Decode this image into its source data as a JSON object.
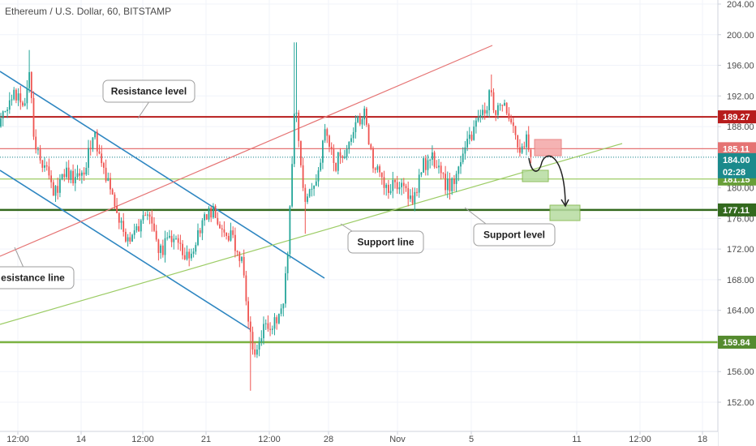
{
  "chart_data": {
    "type": "candlestick",
    "title": "Ethereum / U.S. Dollar, 60, BITSTAMP",
    "ylim": [
      150,
      205
    ],
    "y_ticks": [
      152,
      156,
      160,
      164,
      168,
      172,
      176,
      180,
      184,
      188,
      192,
      196,
      200,
      204
    ],
    "x_ticks": [
      "12:00",
      "14",
      "12:00",
      "21",
      "12:00",
      "28",
      "Nov",
      "5",
      "11",
      "12:00",
      "18"
    ],
    "grid": true,
    "price_path": [
      {
        "t": 0,
        "p": 188
      },
      {
        "t": 15,
        "p": 193
      },
      {
        "t": 28,
        "p": 191
      },
      {
        "t": 36,
        "p": 196
      },
      {
        "t": 42,
        "p": 185
      },
      {
        "t": 55,
        "p": 183
      },
      {
        "t": 68,
        "p": 179
      },
      {
        "t": 80,
        "p": 182
      },
      {
        "t": 92,
        "p": 181
      },
      {
        "t": 104,
        "p": 183
      },
      {
        "t": 116,
        "p": 187
      },
      {
        "t": 128,
        "p": 182
      },
      {
        "t": 140,
        "p": 178
      },
      {
        "t": 155,
        "p": 173
      },
      {
        "t": 168,
        "p": 175
      },
      {
        "t": 180,
        "p": 177
      },
      {
        "t": 195,
        "p": 171
      },
      {
        "t": 208,
        "p": 174
      },
      {
        "t": 222,
        "p": 172
      },
      {
        "t": 235,
        "p": 171
      },
      {
        "t": 248,
        "p": 176
      },
      {
        "t": 262,
        "p": 177
      },
      {
        "t": 275,
        "p": 174
      },
      {
        "t": 288,
        "p": 173
      },
      {
        "t": 298,
        "p": 170
      },
      {
        "t": 304,
        "p": 164
      },
      {
        "t": 310,
        "p": 158
      },
      {
        "t": 322,
        "p": 161
      },
      {
        "t": 335,
        "p": 162
      },
      {
        "t": 345,
        "p": 163
      },
      {
        "t": 353,
        "p": 170
      },
      {
        "t": 358,
        "p": 180
      },
      {
        "t": 363,
        "p": 193
      },
      {
        "t": 368,
        "p": 185
      },
      {
        "t": 374,
        "p": 178
      },
      {
        "t": 380,
        "p": 180
      },
      {
        "t": 390,
        "p": 181
      },
      {
        "t": 400,
        "p": 187
      },
      {
        "t": 412,
        "p": 183
      },
      {
        "t": 425,
        "p": 185
      },
      {
        "t": 437,
        "p": 188
      },
      {
        "t": 448,
        "p": 190
      },
      {
        "t": 458,
        "p": 183
      },
      {
        "t": 470,
        "p": 181
      },
      {
        "t": 482,
        "p": 180
      },
      {
        "t": 495,
        "p": 181
      },
      {
        "t": 508,
        "p": 178
      },
      {
        "t": 520,
        "p": 183
      },
      {
        "t": 530,
        "p": 184
      },
      {
        "t": 542,
        "p": 182
      },
      {
        "t": 552,
        "p": 180
      },
      {
        "t": 562,
        "p": 181
      },
      {
        "t": 572,
        "p": 186
      },
      {
        "t": 582,
        "p": 187
      },
      {
        "t": 592,
        "p": 189
      },
      {
        "t": 602,
        "p": 192
      },
      {
        "t": 612,
        "p": 190
      },
      {
        "t": 622,
        "p": 190
      },
      {
        "t": 632,
        "p": 188
      },
      {
        "t": 640,
        "p": 185
      },
      {
        "t": 648,
        "p": 186
      },
      {
        "t": 655,
        "p": 184
      }
    ],
    "wick_spikes": [
      {
        "t": 36,
        "high": 198
      },
      {
        "t": 308,
        "low": 153.5
      },
      {
        "t": 363,
        "high": 199
      },
      {
        "t": 376,
        "low": 174
      },
      {
        "t": 605,
        "high": 194.8
      }
    ],
    "levels": [
      {
        "name": "resistance-level-line",
        "price": 189.27,
        "color": "#b71c1c",
        "width": 2,
        "tag": "189.27"
      },
      {
        "name": "support-level-line",
        "price": 177.11,
        "color": "#33691e",
        "width": 2.5,
        "tag": "177.11"
      },
      {
        "name": "bottom-level-line",
        "price": 159.84,
        "color": "#7cb342",
        "width": 2.5,
        "tag": "159.84"
      },
      {
        "name": "mid-level-line",
        "price": 181.15,
        "color": "#9ccc65",
        "width": 1.2,
        "tag": "181.15"
      },
      {
        "name": "pink-level-line",
        "price": 185.11,
        "color": "#e57373",
        "width": 1.2,
        "tag": "185.11"
      }
    ],
    "current_price": {
      "value": 184.0,
      "label": "184.00",
      "countdown": "02:28",
      "color": "#1b8a8c"
    },
    "callouts": {
      "resistance_level": "Resistance level",
      "resistance_line": "esistance line",
      "support_line": "Support line",
      "support_level": "Support level"
    },
    "colors": {
      "up": "#26a69a",
      "down": "#ef5350",
      "channel": "#2e86c1",
      "trend_res": "#e57373",
      "trend_sup": "#9ccc65"
    }
  }
}
